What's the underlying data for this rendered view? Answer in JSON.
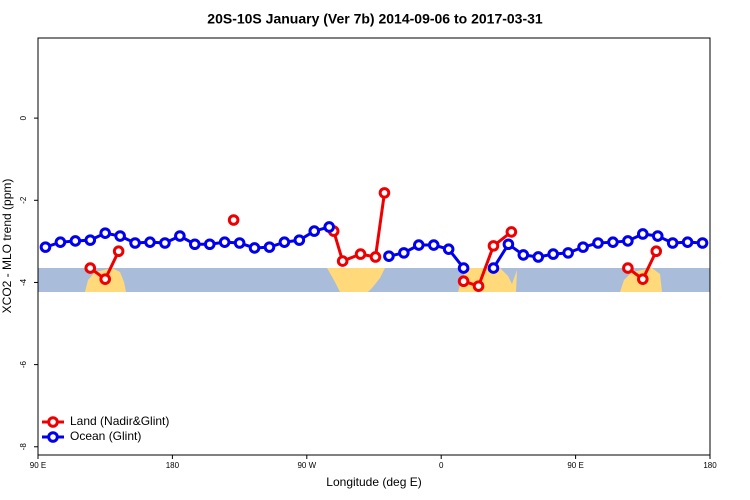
{
  "chart_data": {
    "type": "line",
    "title": "20S-10S January (Ver 7b)   2014-09-06 to 2017-03-31",
    "xlabel": "Longitude (deg E)",
    "ylabel": "XCO2 - MLO trend (ppm)",
    "xlim": [
      90,
      540
    ],
    "ylim": [
      -8.2,
      1.95
    ],
    "xticks": [
      {
        "value": 90,
        "label": "90 E"
      },
      {
        "value": 180,
        "label": "180"
      },
      {
        "value": 270,
        "label": "90 W"
      },
      {
        "value": 360,
        "label": "0"
      },
      {
        "value": 450,
        "label": "90 E"
      },
      {
        "value": 540,
        "label": "180"
      }
    ],
    "yticks": [
      0,
      -2,
      -4,
      -6,
      -8
    ],
    "legend": "bottomleft",
    "series": [
      {
        "name": "Land (Nadir&Glint)",
        "color": "#ee0000",
        "x": [
          125,
          135,
          144,
          null,
          221,
          null,
          288,
          294,
          306,
          316,
          322,
          null,
          375,
          385,
          395,
          407,
          null,
          485,
          495,
          504
        ],
        "values": [
          -3.65,
          -3.92,
          -3.24,
          null,
          -2.48,
          null,
          -2.75,
          -3.48,
          -3.31,
          -3.38,
          -1.82,
          null,
          -3.97,
          -4.09,
          -3.11,
          -2.77,
          null,
          -3.65,
          -3.92,
          -3.24
        ]
      },
      {
        "name": "Ocean (Glint)",
        "color": "#0000ee",
        "x": [
          95,
          105,
          115,
          125,
          135,
          145,
          155,
          165,
          175,
          185,
          195,
          205,
          215,
          225,
          235,
          245,
          255,
          265,
          275,
          285,
          295,
          305,
          315,
          325,
          335,
          345,
          355,
          365,
          375,
          385,
          395,
          405,
          415,
          425,
          435,
          445,
          455,
          465,
          475,
          485,
          495,
          505,
          515,
          525,
          535
        ],
        "values": [
          -3.14,
          -3.02,
          -2.99,
          -2.97,
          -2.8,
          -2.87,
          -3.04,
          -3.02,
          -3.04,
          -2.87,
          -3.07,
          -3.07,
          -3.02,
          -3.04,
          -3.16,
          -3.14,
          -3.02,
          -2.97,
          -2.75,
          -2.65,
          null,
          null,
          null,
          -3.36,
          -3.28,
          -3.09,
          -3.09,
          -3.19,
          -3.65,
          null,
          -3.65,
          -3.07,
          -3.33,
          -3.38,
          -3.31,
          -3.28,
          -3.14,
          -3.04,
          -3.02,
          -2.99,
          -2.82,
          -2.87,
          -3.04,
          -3.02,
          -3.04
        ]
      }
    ]
  }
}
